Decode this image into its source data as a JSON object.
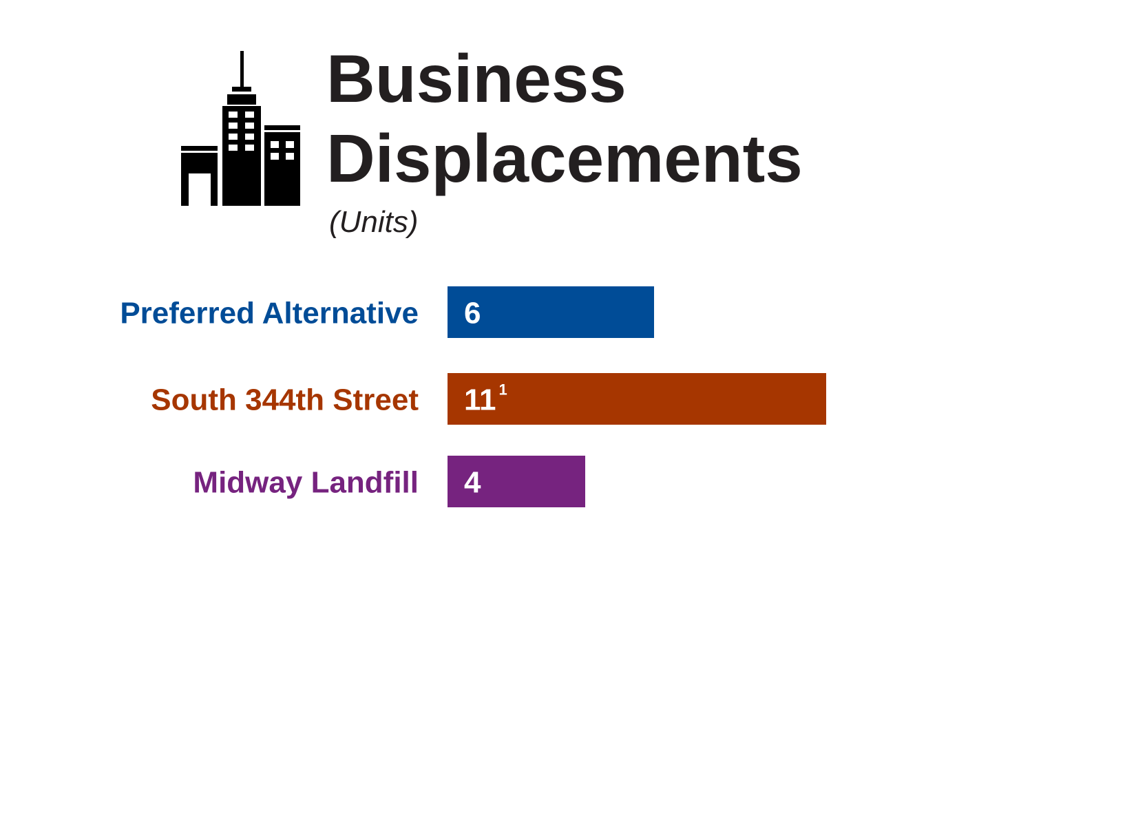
{
  "header": {
    "title_line1": "Business",
    "title_line2": "Displacements",
    "subtitle": "(Units)",
    "icon": "office-buildings-icon"
  },
  "chart_data": {
    "type": "bar",
    "orientation": "horizontal",
    "title": "Business Displacements",
    "subtitle": "(Units)",
    "categories": [
      "Preferred Alternative",
      "South 344th Street",
      "Midway Landfill"
    ],
    "values": [
      6,
      11,
      4
    ],
    "value_labels": [
      "6",
      "11",
      "4"
    ],
    "footnote_marks": [
      "",
      "1",
      ""
    ],
    "colors": [
      "#004c97",
      "#a63600",
      "#76237f"
    ],
    "xlim": [
      0,
      12
    ],
    "grid": false,
    "legend": "none"
  }
}
